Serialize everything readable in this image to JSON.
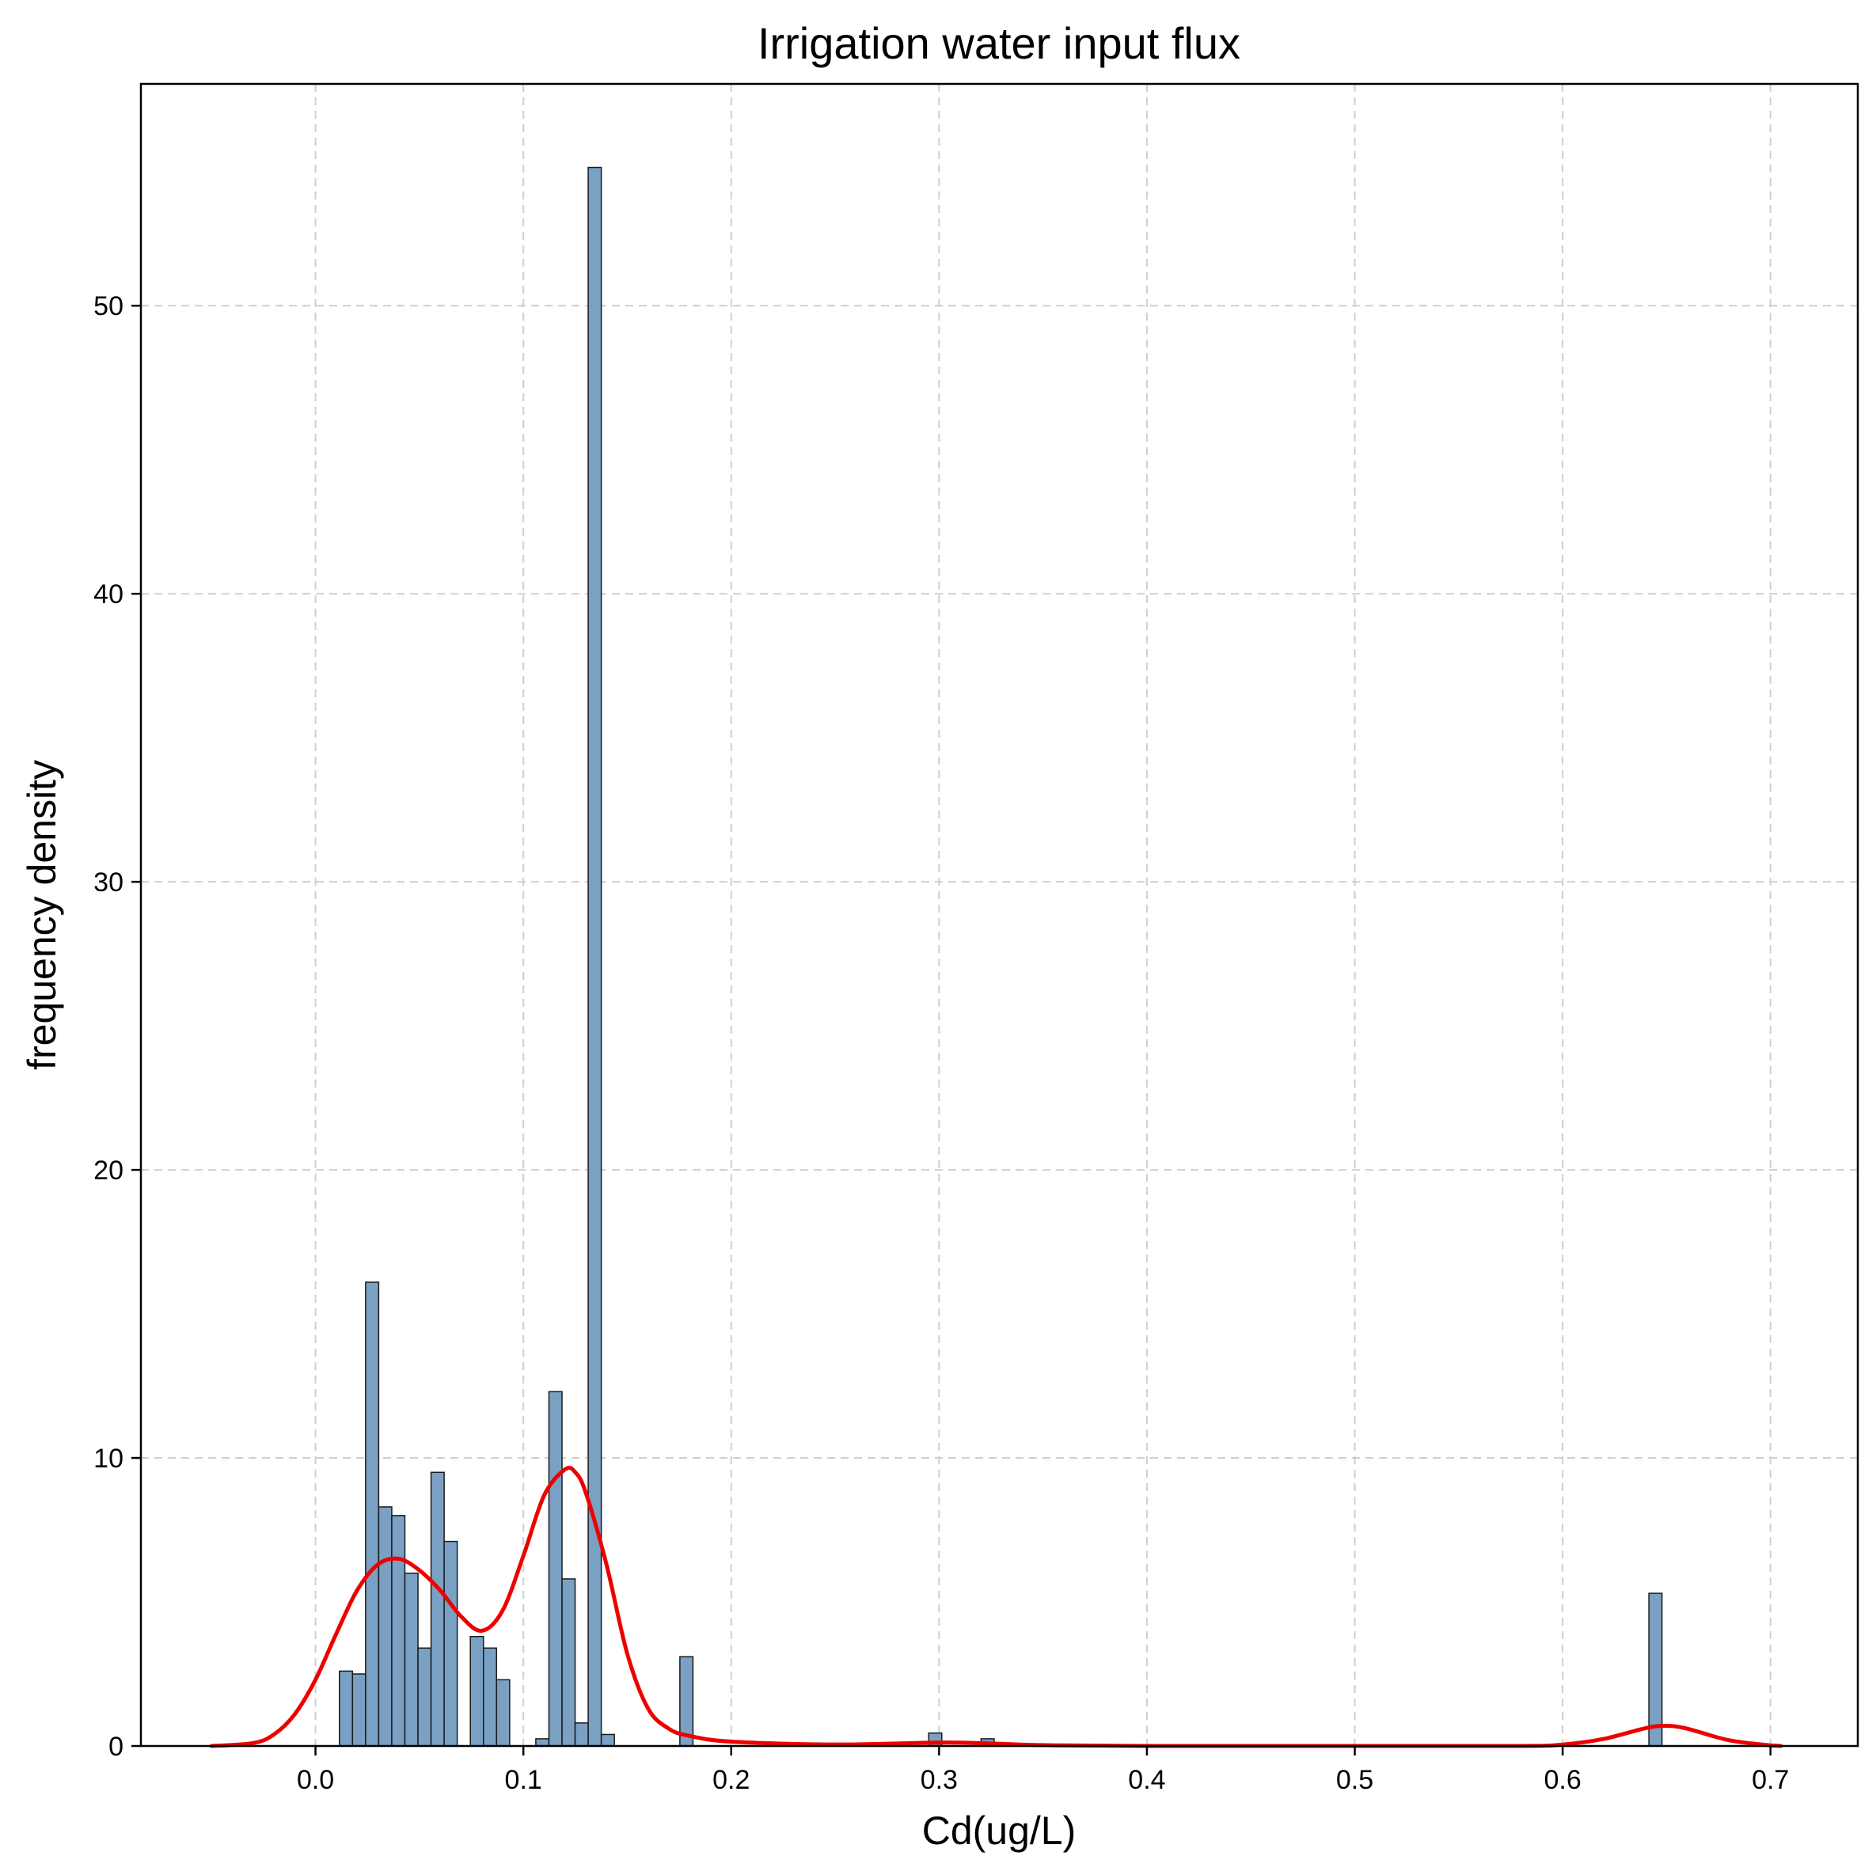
{
  "chart_data": {
    "type": "bar",
    "title": "Irrigation water input flux",
    "xlabel": "Cd(ug/L)",
    "ylabel": "frequency density",
    "xlim": [
      -0.084,
      0.742
    ],
    "ylim": [
      0,
      57.7
    ],
    "xticks": [
      0.0,
      0.1,
      0.2,
      0.3,
      0.4,
      0.5,
      0.6,
      0.7
    ],
    "xtick_labels": [
      "0.0",
      "0.1",
      "0.2",
      "0.3",
      "0.4",
      "0.5",
      "0.6",
      "0.7"
    ],
    "yticks": [
      0,
      10,
      20,
      30,
      40,
      50
    ],
    "ytick_labels": [
      "0",
      "10",
      "20",
      "30",
      "40",
      "50"
    ],
    "grid": true,
    "bin_width": 0.0063,
    "histogram": {
      "bin_starts": [
        0.0115,
        0.0178,
        0.0241,
        0.0304,
        0.0367,
        0.043,
        0.0493,
        0.0556,
        0.0619,
        0.0745,
        0.0808,
        0.0871,
        0.106,
        0.1123,
        0.1186,
        0.1249,
        0.1312,
        0.1375,
        0.1753,
        0.295,
        0.3202,
        0.6415
      ],
      "values": [
        2.6,
        2.5,
        16.1,
        8.3,
        8.0,
        6.0,
        3.4,
        9.5,
        7.1,
        3.8,
        3.4,
        2.3,
        0.25,
        12.3,
        5.8,
        0.8,
        54.8,
        0.4,
        3.1,
        0.45,
        0.25,
        5.3
      ],
      "fill": "#7aa0c4",
      "edge": "#1a1a1a"
    },
    "kde": {
      "color": "#ee0000",
      "x": [
        -0.05,
        -0.03,
        -0.02,
        -0.01,
        0.0,
        0.01,
        0.02,
        0.03,
        0.04,
        0.05,
        0.06,
        0.07,
        0.08,
        0.09,
        0.1,
        0.11,
        0.12,
        0.125,
        0.13,
        0.14,
        0.15,
        0.16,
        0.17,
        0.18,
        0.2,
        0.25,
        0.3,
        0.32,
        0.35,
        0.4,
        0.5,
        0.58,
        0.6,
        0.62,
        0.64,
        0.65,
        0.66,
        0.68,
        0.7,
        0.705
      ],
      "y": [
        0.0,
        0.1,
        0.4,
        1.1,
        2.3,
        3.9,
        5.4,
        6.3,
        6.5,
        6.1,
        5.4,
        4.5,
        4.0,
        4.7,
        6.6,
        8.7,
        9.6,
        9.5,
        8.8,
        6.3,
        3.2,
        1.3,
        0.6,
        0.35,
        0.15,
        0.05,
        0.12,
        0.1,
        0.03,
        0.0,
        0.0,
        0.0,
        0.05,
        0.25,
        0.62,
        0.7,
        0.6,
        0.2,
        0.02,
        0.0
      ]
    }
  }
}
